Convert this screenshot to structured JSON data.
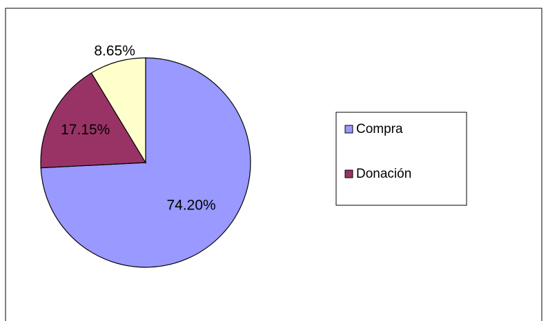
{
  "chart_data": {
    "type": "pie",
    "categories": [
      "Compra",
      "Donación",
      null
    ],
    "values": [
      74.2,
      17.15,
      8.65
    ],
    "value_labels": [
      "74.20%",
      "17.15%",
      "8.65%"
    ],
    "colors": [
      "#9999ff",
      "#993366",
      "#ffffcc"
    ],
    "legend": "right"
  }
}
